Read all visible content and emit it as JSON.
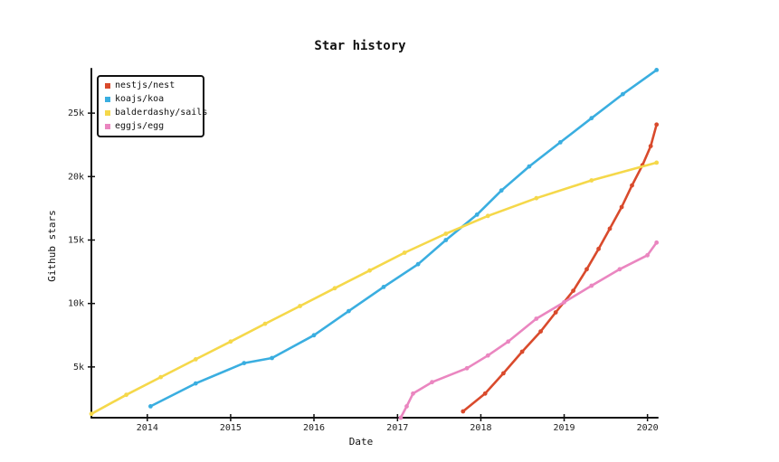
{
  "chart_data": {
    "type": "line",
    "title": "Star history",
    "xlabel": "Date",
    "ylabel": "Github stars",
    "x_type": "date",
    "xlim": [
      "2013-05-01",
      "2020-02-15"
    ],
    "ylim": [
      1000,
      28500
    ],
    "x_ticks": [
      {
        "label": "2014",
        "date": "2014-01-01"
      },
      {
        "label": "2015",
        "date": "2015-01-01"
      },
      {
        "label": "2016",
        "date": "2016-01-01"
      },
      {
        "label": "2017",
        "date": "2017-01-01"
      },
      {
        "label": "2018",
        "date": "2018-01-01"
      },
      {
        "label": "2019",
        "date": "2019-01-01"
      },
      {
        "label": "2020",
        "date": "2020-01-01"
      }
    ],
    "y_ticks": [
      {
        "label": "5k",
        "value": 5000
      },
      {
        "label": "10k",
        "value": 10000
      },
      {
        "label": "15k",
        "value": 15000
      },
      {
        "label": "20k",
        "value": 20000
      },
      {
        "label": "25k",
        "value": 25000
      }
    ],
    "legend_position": "top-left",
    "grid": false,
    "series": [
      {
        "name": "nestjs/nest",
        "color": "#d94a2c",
        "points": [
          {
            "x": "2017-10-15",
            "y": 1500
          },
          {
            "x": "2018-01-20",
            "y": 2900
          },
          {
            "x": "2018-04-10",
            "y": 4500
          },
          {
            "x": "2018-07-01",
            "y": 6200
          },
          {
            "x": "2018-09-20",
            "y": 7800
          },
          {
            "x": "2018-11-25",
            "y": 9300
          },
          {
            "x": "2019-02-10",
            "y": 11000
          },
          {
            "x": "2019-04-10",
            "y": 12700
          },
          {
            "x": "2019-06-01",
            "y": 14300
          },
          {
            "x": "2019-07-20",
            "y": 15900
          },
          {
            "x": "2019-09-10",
            "y": 17600
          },
          {
            "x": "2019-10-25",
            "y": 19300
          },
          {
            "x": "2019-12-10",
            "y": 20900
          },
          {
            "x": "2020-01-15",
            "y": 22400
          },
          {
            "x": "2020-02-10",
            "y": 24100
          }
        ]
      },
      {
        "name": "koajs/koa",
        "color": "#3aaee0",
        "points": [
          {
            "x": "2014-01-15",
            "y": 1900
          },
          {
            "x": "2014-08-01",
            "y": 3700
          },
          {
            "x": "2015-03-01",
            "y": 5300
          },
          {
            "x": "2015-07-01",
            "y": 5700
          },
          {
            "x": "2016-01-01",
            "y": 7500
          },
          {
            "x": "2016-06-01",
            "y": 9400
          },
          {
            "x": "2016-11-01",
            "y": 11300
          },
          {
            "x": "2017-04-01",
            "y": 13100
          },
          {
            "x": "2017-08-01",
            "y": 15000
          },
          {
            "x": "2017-12-15",
            "y": 17000
          },
          {
            "x": "2018-04-01",
            "y": 18900
          },
          {
            "x": "2018-08-01",
            "y": 20800
          },
          {
            "x": "2018-12-15",
            "y": 22700
          },
          {
            "x": "2019-05-01",
            "y": 24600
          },
          {
            "x": "2019-09-15",
            "y": 26500
          },
          {
            "x": "2020-02-10",
            "y": 28400
          }
        ]
      },
      {
        "name": "balderdashy/sails",
        "color": "#f5d84a",
        "points": [
          {
            "x": "2013-05-01",
            "y": 1300
          },
          {
            "x": "2013-10-01",
            "y": 2800
          },
          {
            "x": "2014-03-01",
            "y": 4200
          },
          {
            "x": "2014-08-01",
            "y": 5600
          },
          {
            "x": "2015-01-01",
            "y": 7000
          },
          {
            "x": "2015-06-01",
            "y": 8400
          },
          {
            "x": "2015-11-01",
            "y": 9800
          },
          {
            "x": "2016-04-01",
            "y": 11200
          },
          {
            "x": "2016-09-01",
            "y": 12600
          },
          {
            "x": "2017-02-01",
            "y": 14000
          },
          {
            "x": "2017-08-01",
            "y": 15500
          },
          {
            "x": "2018-02-01",
            "y": 16900
          },
          {
            "x": "2018-09-01",
            "y": 18300
          },
          {
            "x": "2019-05-01",
            "y": 19700
          },
          {
            "x": "2020-02-10",
            "y": 21100
          }
        ]
      },
      {
        "name": "eggjs/egg",
        "color": "#ea86c0",
        "points": [
          {
            "x": "2017-01-15",
            "y": 1000
          },
          {
            "x": "2017-02-10",
            "y": 1900
          },
          {
            "x": "2017-03-10",
            "y": 2900
          },
          {
            "x": "2017-06-01",
            "y": 3800
          },
          {
            "x": "2017-11-01",
            "y": 4900
          },
          {
            "x": "2018-02-01",
            "y": 5900
          },
          {
            "x": "2018-05-01",
            "y": 7000
          },
          {
            "x": "2018-09-01",
            "y": 8800
          },
          {
            "x": "2019-01-01",
            "y": 10100
          },
          {
            "x": "2019-05-01",
            "y": 11400
          },
          {
            "x": "2019-09-01",
            "y": 12700
          },
          {
            "x": "2020-01-01",
            "y": 13800
          },
          {
            "x": "2020-02-10",
            "y": 14800
          }
        ]
      }
    ]
  }
}
